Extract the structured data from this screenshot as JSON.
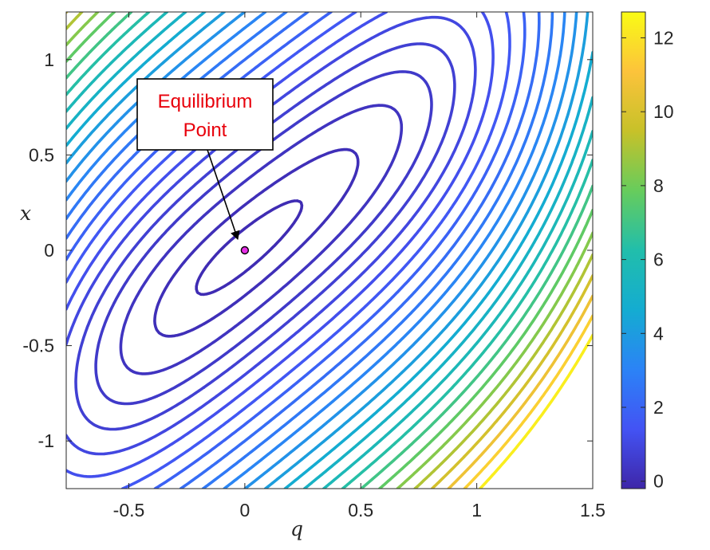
{
  "chart_data": {
    "type": "contour",
    "title": "",
    "xlabel": "q",
    "ylabel": "x",
    "xlim": [
      -0.77,
      1.5
    ],
    "ylim": [
      -1.25,
      1.25
    ],
    "xticks": [
      -0.5,
      0,
      0.5,
      1,
      1.5
    ],
    "xtick_labels": [
      "-0.5",
      "0",
      "0.5",
      "1",
      "1.5"
    ],
    "yticks": [
      -1,
      -0.5,
      0,
      0.5,
      1
    ],
    "ytick_labels": [
      "-1",
      "-0.5",
      "0",
      "0.5",
      "1"
    ],
    "contour_levels": [
      0.03,
      0.13,
      0.3,
      0.5,
      0.72,
      0.98,
      1.26,
      1.58,
      1.92,
      2.3,
      2.7,
      3.13,
      3.6,
      4.1,
      4.62,
      5.17,
      5.75,
      6.36,
      7.0,
      7.67,
      8.37,
      9.1,
      9.86,
      10.65,
      11.47,
      12.32
    ],
    "colorbar": {
      "limits": [
        -0.2,
        12.7
      ],
      "ticks": [
        0,
        2,
        4,
        6,
        8,
        10,
        12
      ],
      "tick_labels": [
        "0",
        "2",
        "4",
        "6",
        "8",
        "10",
        "12"
      ],
      "colormap": "parula",
      "colors": [
        "#3e26a8",
        "#4353f4",
        "#2b83f6",
        "#14acd1",
        "#21beab",
        "#67cc5c",
        "#c7c129",
        "#fcc33b",
        "#f9fb15"
      ]
    },
    "annotation": {
      "text_lines": [
        "Equilibrium",
        "Point"
      ],
      "text_color": "#e8000b",
      "target": [
        0,
        0
      ]
    },
    "equilibrium_point": {
      "x": 0,
      "y": 0,
      "color": "#e62ee6"
    },
    "grid": false
  }
}
